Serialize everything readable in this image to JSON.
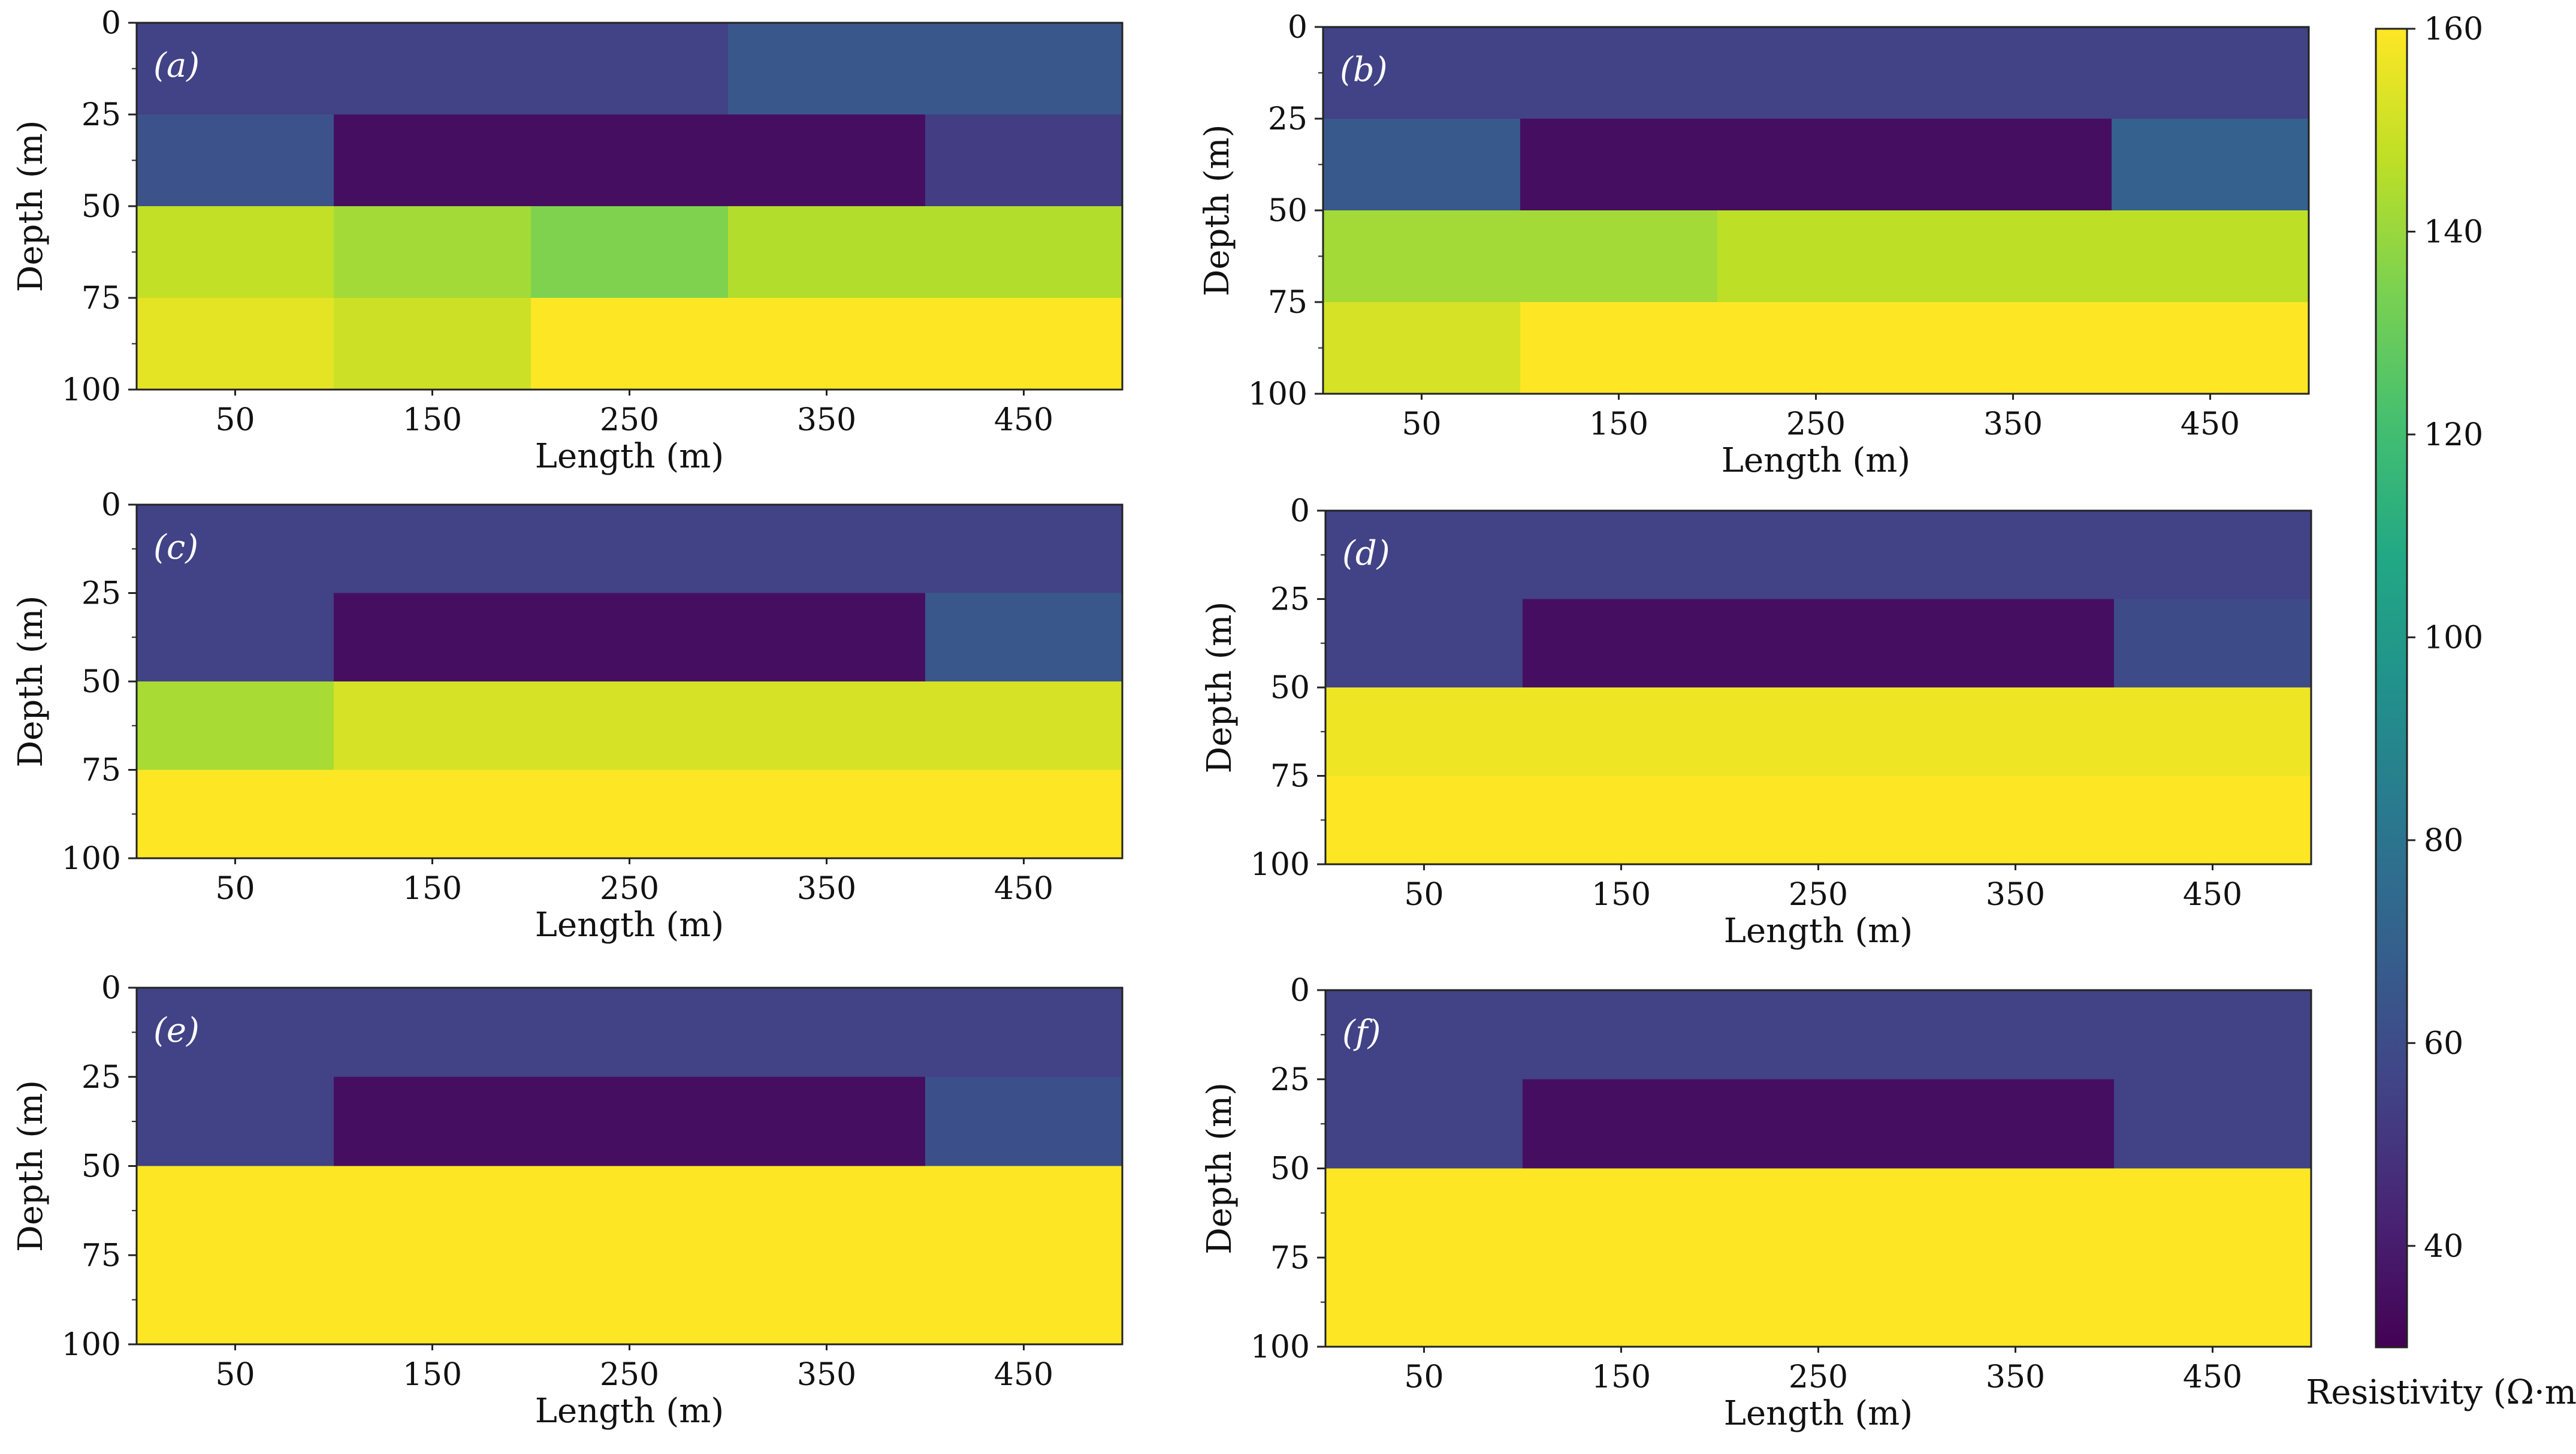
{
  "chart_data": {
    "type": "heatmap",
    "figure_description_free": true,
    "colorbar": {
      "label": "Resistivity (Ω·m)",
      "range": [
        30,
        160
      ],
      "ticks": [
        40,
        60,
        80,
        100,
        120,
        140,
        160
      ],
      "tick_labels": [
        "40",
        "60",
        "80",
        "100",
        "120",
        "140",
        "160"
      ],
      "colormap": "viridis"
    },
    "x_edges": [
      0,
      100,
      200,
      300,
      400,
      500
    ],
    "y_edges": [
      0,
      25,
      50,
      75,
      100
    ],
    "panels": [
      {
        "label": "(a)",
        "xlabel": "Length (m)",
        "ylabel": "Depth (m)",
        "xticks": [
          50,
          150,
          250,
          350,
          450
        ],
        "xtick_labels": [
          "50",
          "150",
          "250",
          "350",
          "450"
        ],
        "yticks": [
          0,
          25,
          50,
          75,
          100
        ],
        "ytick_labels": [
          "0",
          "25",
          "50",
          "75",
          "100"
        ],
        "xlim": [
          0,
          500
        ],
        "ylim": [
          100,
          0
        ],
        "values": [
          [
            55,
            55,
            55,
            65,
            65
          ],
          [
            63,
            35,
            35,
            35,
            53
          ],
          [
            148,
            142,
            135,
            145,
            145
          ],
          [
            155,
            150,
            160,
            160,
            160
          ]
        ]
      },
      {
        "label": "(b)",
        "xlabel": "Length (m)",
        "ylabel": "Depth (m)",
        "xticks": [
          50,
          150,
          250,
          350,
          450
        ],
        "xtick_labels": [
          "50",
          "150",
          "250",
          "350",
          "450"
        ],
        "yticks": [
          0,
          25,
          50,
          75,
          100
        ],
        "ytick_labels": [
          "0",
          "25",
          "50",
          "75",
          "100"
        ],
        "xlim": [
          0,
          500
        ],
        "ylim": [
          100,
          0
        ],
        "values": [
          [
            55,
            55,
            55,
            55,
            55
          ],
          [
            66,
            35,
            35,
            35,
            70
          ],
          [
            142,
            142,
            147,
            147,
            147
          ],
          [
            152,
            160,
            160,
            160,
            160
          ]
        ]
      },
      {
        "label": "(c)",
        "xlabel": "Length (m)",
        "ylabel": "Depth (m)",
        "xticks": [
          50,
          150,
          250,
          350,
          450
        ],
        "xtick_labels": [
          "50",
          "150",
          "250",
          "350",
          "450"
        ],
        "yticks": [
          0,
          25,
          50,
          75,
          100
        ],
        "ytick_labels": [
          "0",
          "25",
          "50",
          "75",
          "100"
        ],
        "xlim": [
          0,
          500
        ],
        "ylim": [
          100,
          0
        ],
        "values": [
          [
            55,
            55,
            55,
            55,
            55
          ],
          [
            55,
            35,
            35,
            35,
            65
          ],
          [
            143,
            152,
            152,
            152,
            152
          ],
          [
            160,
            160,
            160,
            160,
            160
          ]
        ]
      },
      {
        "label": "(d)",
        "xlabel": "Length (m)",
        "ylabel": "Depth (m)",
        "xticks": [
          50,
          150,
          250,
          350,
          450
        ],
        "xtick_labels": [
          "50",
          "150",
          "250",
          "350",
          "450"
        ],
        "yticks": [
          0,
          25,
          50,
          75,
          100
        ],
        "ytick_labels": [
          "0",
          "25",
          "50",
          "75",
          "100"
        ],
        "xlim": [
          0,
          500
        ],
        "ylim": [
          100,
          0
        ],
        "values": [
          [
            55,
            55,
            55,
            55,
            55
          ],
          [
            55,
            35,
            35,
            35,
            60
          ],
          [
            157,
            157,
            157,
            157,
            157
          ],
          [
            160,
            160,
            160,
            160,
            160
          ]
        ]
      },
      {
        "label": "(e)",
        "xlabel": "Length (m)",
        "ylabel": "Depth (m)",
        "xticks": [
          50,
          150,
          250,
          350,
          450
        ],
        "xtick_labels": [
          "50",
          "150",
          "250",
          "350",
          "450"
        ],
        "yticks": [
          0,
          25,
          50,
          75,
          100
        ],
        "ytick_labels": [
          "0",
          "25",
          "50",
          "75",
          "100"
        ],
        "xlim": [
          0,
          500
        ],
        "ylim": [
          100,
          0
        ],
        "values": [
          [
            55,
            55,
            55,
            55,
            55
          ],
          [
            55,
            35,
            35,
            35,
            62
          ],
          [
            160,
            160,
            160,
            160,
            160
          ],
          [
            160,
            160,
            160,
            160,
            160
          ]
        ]
      },
      {
        "label": "(f)",
        "xlabel": "Length (m)",
        "ylabel": "Depth (m)",
        "xticks": [
          50,
          150,
          250,
          350,
          450
        ],
        "xtick_labels": [
          "50",
          "150",
          "250",
          "350",
          "450"
        ],
        "yticks": [
          0,
          25,
          50,
          75,
          100
        ],
        "ytick_labels": [
          "0",
          "25",
          "50",
          "75",
          "100"
        ],
        "xlim": [
          0,
          500
        ],
        "ylim": [
          100,
          0
        ],
        "values": [
          [
            55,
            55,
            55,
            55,
            55
          ],
          [
            55,
            35,
            35,
            35,
            55
          ],
          [
            160,
            160,
            160,
            160,
            160
          ],
          [
            160,
            160,
            160,
            160,
            160
          ]
        ]
      }
    ]
  }
}
